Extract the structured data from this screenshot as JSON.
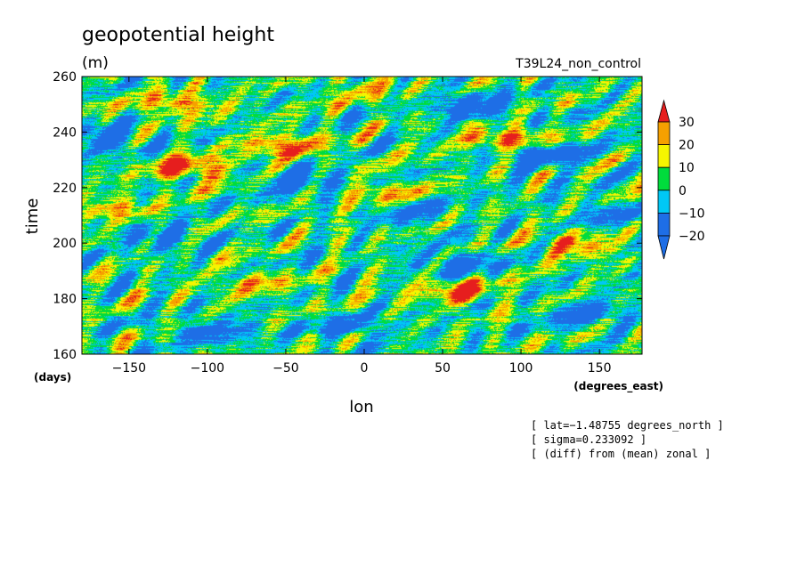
{
  "chart_data": {
    "type": "heatmap",
    "title": "geopotential height",
    "units": "(m)",
    "subtitle": "T39L24_non_control",
    "xlabel": "lon",
    "ylabel": "time",
    "x_units": "(degrees_east)",
    "y_units": "(days)",
    "xlim": [
      -180,
      177.1875
    ],
    "ylim": [
      160,
      260
    ],
    "x_ticks": [
      -150,
      -100,
      -50,
      0,
      50,
      100,
      150
    ],
    "y_ticks": [
      160,
      180,
      200,
      220,
      240,
      260
    ],
    "x_tick_labels": [
      "−150",
      "−100",
      "−50",
      "0",
      "50",
      "100",
      "150"
    ],
    "y_tick_labels": [
      "160",
      "180",
      "200",
      "220",
      "240",
      "260"
    ],
    "grid": false,
    "colorbar": {
      "placement": "right",
      "levels": [
        -20,
        -10,
        0,
        10,
        20,
        30
      ],
      "level_labels": [
        "−20",
        "−10",
        "0",
        "10",
        "20",
        "30"
      ],
      "colors": [
        "#1e6ee6",
        "#00c8f5",
        "#00dc3c",
        "#f5f500",
        "#f5a000",
        "#e61e1e"
      ],
      "extend": "both"
    },
    "annotations": [
      "[ lat=−1.48755 degrees_north ]",
      "[ sigma=0.233092 ]",
      "[ (diff) from (mean) zonal ]"
    ],
    "blob_features": [
      {
        "lon": 70,
        "time": 249,
        "value": -30
      },
      {
        "lon": 115,
        "time": 232,
        "value": -30
      },
      {
        "lon": -165,
        "time": 238,
        "value": -25
      },
      {
        "lon": -40,
        "time": 223,
        "value": -25
      },
      {
        "lon": 60,
        "time": 193,
        "value": -22
      },
      {
        "lon": -130,
        "time": 203,
        "value": -22
      },
      {
        "lon": 140,
        "time": 175,
        "value": -22
      },
      {
        "lon": -95,
        "time": 168,
        "value": -20
      },
      {
        "lon": 30,
        "time": 211,
        "value": -18
      },
      {
        "lon": -10,
        "time": 170,
        "value": -18
      },
      {
        "lon": 160,
        "time": 210,
        "value": -16
      },
      {
        "lon": -110,
        "time": 227,
        "value": 32
      },
      {
        "lon": -50,
        "time": 235,
        "value": 28
      },
      {
        "lon": 90,
        "time": 238,
        "value": 30
      },
      {
        "lon": 60,
        "time": 183,
        "value": 28
      },
      {
        "lon": -120,
        "time": 250,
        "value": 24
      },
      {
        "lon": 135,
        "time": 199,
        "value": 24
      },
      {
        "lon": -160,
        "time": 212,
        "value": 20
      },
      {
        "lon": 10,
        "time": 218,
        "value": 20
      },
      {
        "lon": 0,
        "time": 256,
        "value": 16
      },
      {
        "lon": -70,
        "time": 186,
        "value": 16
      }
    ]
  }
}
